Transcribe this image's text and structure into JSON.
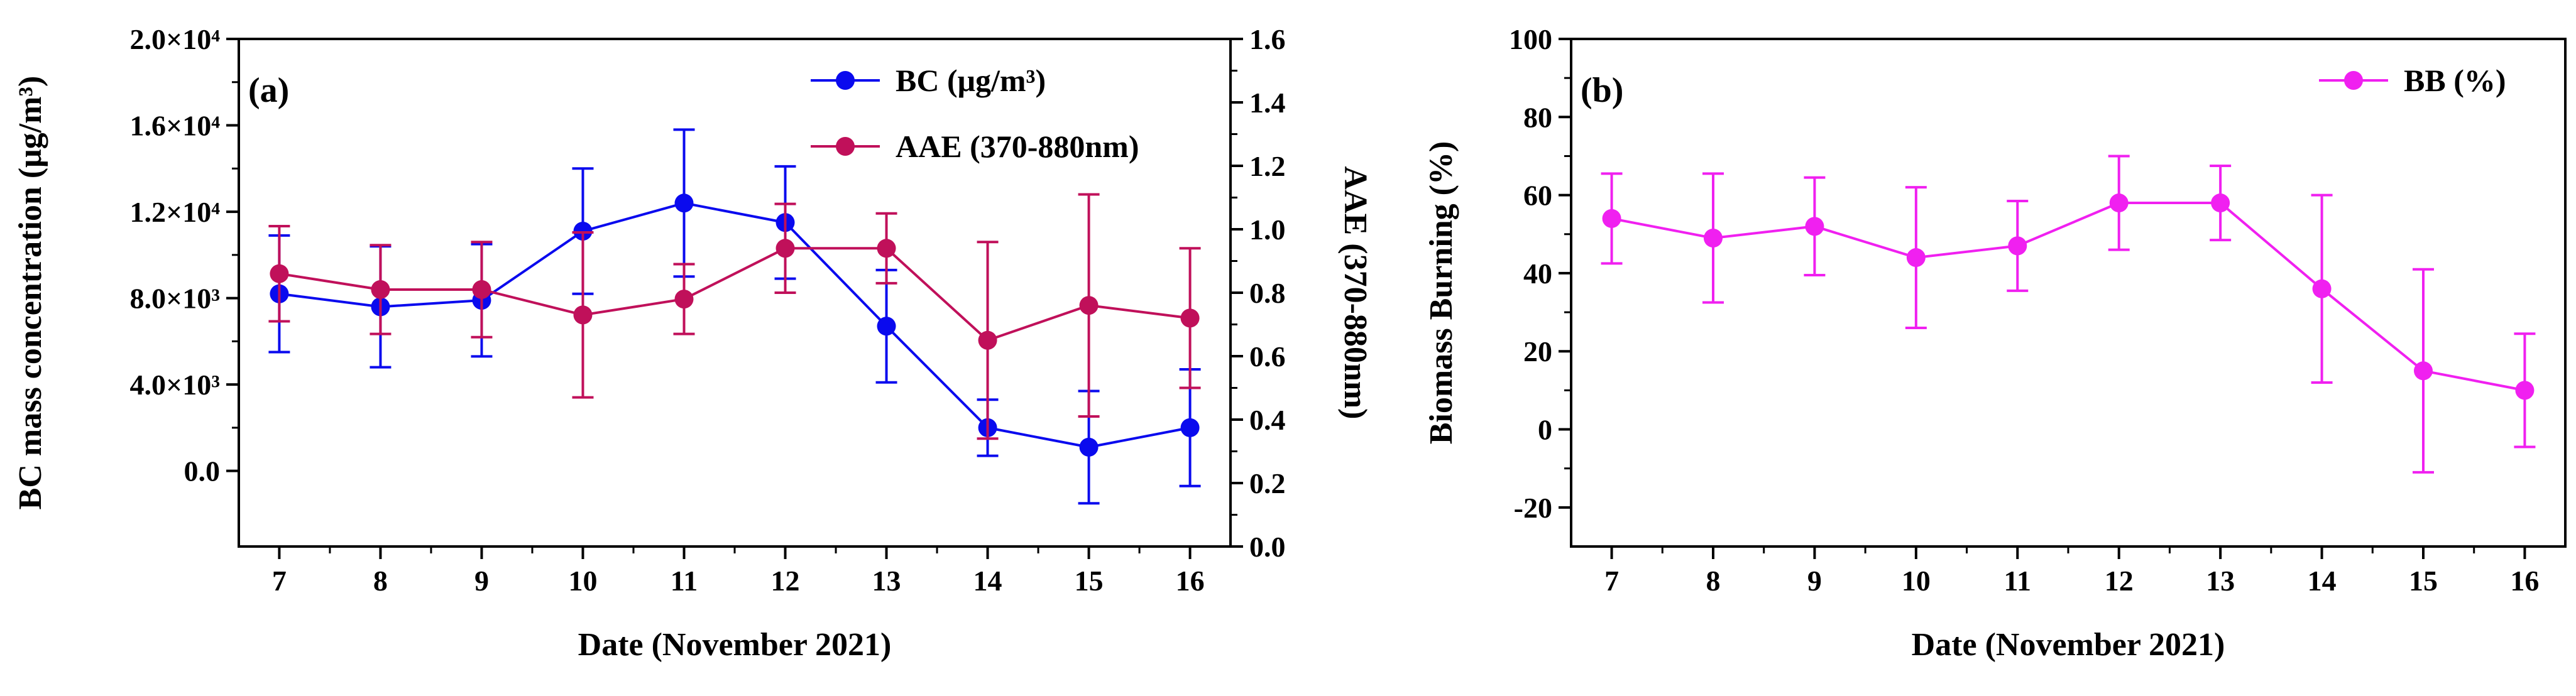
{
  "chart_data": [
    {
      "panel_label": "(a)",
      "type": "line",
      "x": [
        7,
        8,
        9,
        10,
        11,
        12,
        13,
        14,
        15,
        16
      ],
      "x_tick_labels": [
        "7",
        "8",
        "9",
        "10",
        "11",
        "12",
        "13",
        "14",
        "15",
        "16"
      ],
      "xlim": [
        6.6,
        16.4
      ],
      "xlabel": "Date (November 2021)",
      "ylabel_left": "BC mass concentration (μg/m³)",
      "ylabel_right": "AAE (370-880nm)",
      "ylim_left": [
        -3500,
        20000
      ],
      "ylim_right": [
        0.0,
        1.6
      ],
      "left_ticks": [
        0,
        4000,
        8000,
        12000,
        16000,
        20000
      ],
      "left_tick_labels": [
        "0.0",
        "4.0×10³",
        "8.0×10³",
        "1.2×10⁴",
        "1.6×10⁴",
        "2.0×10⁴"
      ],
      "right_ticks": [
        0.0,
        0.2,
        0.4,
        0.6,
        0.8,
        1.0,
        1.2,
        1.4,
        1.6
      ],
      "right_tick_labels": [
        "0.0",
        "0.2",
        "0.4",
        "0.6",
        "0.8",
        "1.0",
        "1.2",
        "1.4",
        "1.6"
      ],
      "legend_position": "top-right",
      "series": [
        {
          "name": "BC (μg/m³)",
          "axis": "left",
          "color": "#0a0aee",
          "values": [
            8200,
            7600,
            7900,
            11100,
            12400,
            11500,
            6700,
            2000,
            1100,
            2000
          ],
          "errors": [
            2700,
            2800,
            2600,
            2900,
            3400,
            2600,
            2600,
            1300,
            2600,
            2700
          ]
        },
        {
          "name": "AAE (370-880nm)",
          "axis": "right",
          "color": "#c0105a",
          "values": [
            0.86,
            0.81,
            0.81,
            0.73,
            0.78,
            0.94,
            0.94,
            0.65,
            0.76,
            0.72
          ],
          "errors": [
            0.15,
            0.14,
            0.15,
            0.26,
            0.11,
            0.14,
            0.11,
            0.31,
            0.35,
            0.22
          ]
        }
      ]
    },
    {
      "panel_label": "(b)",
      "type": "line",
      "x": [
        7,
        8,
        9,
        10,
        11,
        12,
        13,
        14,
        15,
        16
      ],
      "x_tick_labels": [
        "7",
        "8",
        "9",
        "10",
        "11",
        "12",
        "13",
        "14",
        "15",
        "16"
      ],
      "xlim": [
        6.6,
        16.4
      ],
      "xlabel": "Date (November 2021)",
      "ylabel": "Biomass Burning (%)",
      "ylim": [
        -30,
        100
      ],
      "y_ticks": [
        -20,
        0,
        20,
        40,
        60,
        80,
        100
      ],
      "y_tick_labels": [
        "-20",
        "0",
        "20",
        "40",
        "60",
        "80",
        "100"
      ],
      "legend_position": "top-right",
      "series": [
        {
          "name": "BB (%)",
          "color": "#f020f0",
          "values": [
            54,
            49,
            52,
            44,
            47,
            58,
            58,
            36,
            15,
            10
          ],
          "errors": [
            11.5,
            16.5,
            12.5,
            18,
            11.5,
            12,
            9.5,
            24,
            26,
            14.5
          ]
        }
      ]
    }
  ]
}
